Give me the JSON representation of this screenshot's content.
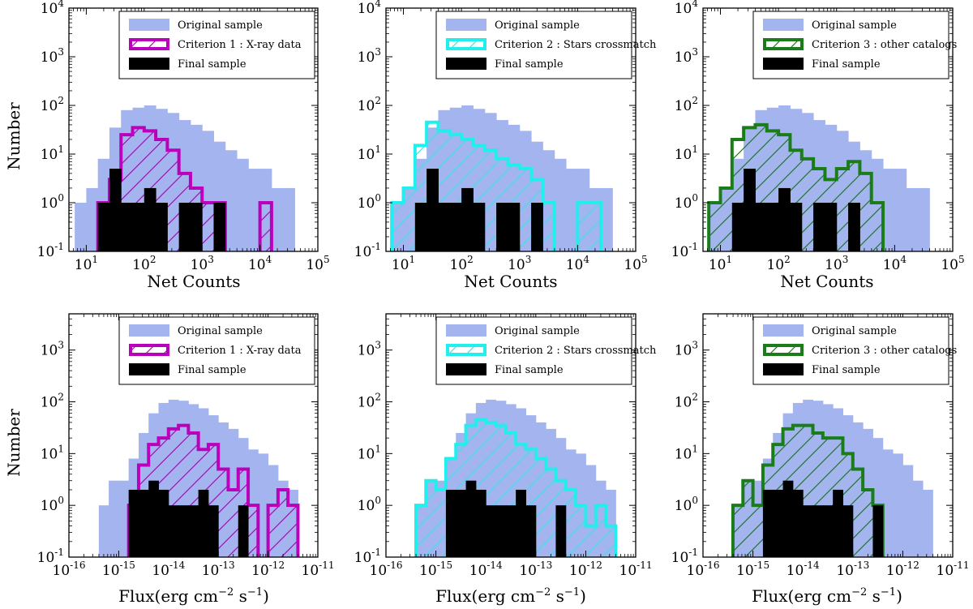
{
  "figure": {
    "ylabel_top": "Number",
    "ylabel_bottom": "Number",
    "xlabel_top": "Net Counts",
    "xlabel_bottom_base": "Flux(erg cm",
    "xlabel_bottom_exp1": "−2",
    "xlabel_bottom_mid": " s",
    "xlabel_bottom_exp2": "−1",
    "xlabel_bottom_end": ")"
  },
  "colors": {
    "original": "#a4b4ee",
    "crit1": "#bb00bb",
    "crit2": "#22eeee",
    "crit3": "#1a7d1a",
    "final": "#000000"
  },
  "chart_data": [
    {
      "type": "histogram",
      "panel": "top-left",
      "xlabel": "Net Counts",
      "ylabel": "Number",
      "xscale": "log",
      "yscale": "log",
      "xlim_log10": [
        0.7,
        5
      ],
      "ylim_log10": [
        -1,
        4
      ],
      "xticks": [
        {
          "b": "10",
          "e": "1",
          "v": 1
        },
        {
          "b": "10",
          "e": "2",
          "v": 2
        },
        {
          "b": "10",
          "e": "3",
          "v": 3
        },
        {
          "b": "10",
          "e": "4",
          "v": 4
        },
        {
          "b": "10",
          "e": "5",
          "v": 5
        }
      ],
      "yticks": [
        {
          "b": "10",
          "e": "-1",
          "v": -1
        },
        {
          "b": "10",
          "e": "0",
          "v": 0
        },
        {
          "b": "10",
          "e": "1",
          "v": 1
        },
        {
          "b": "10",
          "e": "2",
          "v": 2
        },
        {
          "b": "10",
          "e": "3",
          "v": 3
        },
        {
          "b": "10",
          "e": "4",
          "v": 4
        }
      ],
      "legend": [
        "Original sample",
        "Criterion 1 : X-ray data",
        "Final sample"
      ],
      "legend_position": "top-right",
      "original": {
        "start": 0.8,
        "width": 0.2,
        "counts": [
          1,
          2,
          8,
          35,
          80,
          90,
          100,
          85,
          70,
          50,
          40,
          30,
          18,
          12,
          8,
          5,
          5,
          2,
          2
        ]
      },
      "criterion": {
        "color_key": "crit1",
        "start": 1.0,
        "width": 0.2,
        "counts": [
          0,
          1,
          3,
          25,
          35,
          30,
          20,
          12,
          4,
          2,
          1,
          1,
          0,
          0,
          0,
          1,
          0,
          0,
          0,
          0
        ]
      },
      "final": {
        "start": 1.2,
        "width": 0.2,
        "counts": [
          1,
          5,
          1,
          1,
          2,
          1,
          0,
          1,
          1,
          0,
          1,
          0
        ]
      }
    },
    {
      "type": "histogram",
      "panel": "top-middle",
      "xlabel": "Net Counts",
      "ylabel": "",
      "xscale": "log",
      "yscale": "log",
      "xlim_log10": [
        0.7,
        5
      ],
      "ylim_log10": [
        -1,
        4
      ],
      "xticks": [
        {
          "b": "10",
          "e": "1",
          "v": 1
        },
        {
          "b": "10",
          "e": "2",
          "v": 2
        },
        {
          "b": "10",
          "e": "3",
          "v": 3
        },
        {
          "b": "10",
          "e": "4",
          "v": 4
        },
        {
          "b": "10",
          "e": "5",
          "v": 5
        }
      ],
      "yticks": [
        {
          "b": "10",
          "e": "-1",
          "v": -1
        },
        {
          "b": "10",
          "e": "0",
          "v": 0
        },
        {
          "b": "10",
          "e": "1",
          "v": 1
        },
        {
          "b": "10",
          "e": "2",
          "v": 2
        },
        {
          "b": "10",
          "e": "3",
          "v": 3
        },
        {
          "b": "10",
          "e": "4",
          "v": 4
        }
      ],
      "legend": [
        "Original sample",
        "Criterion 2 : Stars crossmatch",
        "Final sample"
      ],
      "legend_position": "top-right",
      "original": {
        "start": 0.8,
        "width": 0.2,
        "counts": [
          1,
          2,
          8,
          35,
          80,
          90,
          100,
          85,
          70,
          50,
          40,
          30,
          18,
          12,
          8,
          5,
          5,
          2,
          2
        ]
      },
      "criterion": {
        "color_key": "crit2",
        "start": 0.8,
        "width": 0.2,
        "counts": [
          1,
          2,
          15,
          45,
          30,
          25,
          20,
          15,
          12,
          8,
          6,
          5,
          3,
          1,
          0,
          0,
          1,
          1,
          0,
          0,
          0
        ]
      },
      "final": {
        "start": 1.2,
        "width": 0.2,
        "counts": [
          1,
          5,
          1,
          1,
          2,
          1,
          0,
          1,
          1,
          0,
          1,
          0
        ]
      }
    },
    {
      "type": "histogram",
      "panel": "top-right",
      "xlabel": "Net Counts",
      "ylabel": "",
      "xscale": "log",
      "yscale": "log",
      "xlim_log10": [
        0.7,
        5
      ],
      "ylim_log10": [
        -1,
        4
      ],
      "xticks": [
        {
          "b": "10",
          "e": "1",
          "v": 1
        },
        {
          "b": "10",
          "e": "2",
          "v": 2
        },
        {
          "b": "10",
          "e": "3",
          "v": 3
        },
        {
          "b": "10",
          "e": "4",
          "v": 4
        },
        {
          "b": "10",
          "e": "5",
          "v": 5
        }
      ],
      "yticks": [
        {
          "b": "10",
          "e": "-1",
          "v": -1
        },
        {
          "b": "10",
          "e": "0",
          "v": 0
        },
        {
          "b": "10",
          "e": "1",
          "v": 1
        },
        {
          "b": "10",
          "e": "2",
          "v": 2
        },
        {
          "b": "10",
          "e": "3",
          "v": 3
        },
        {
          "b": "10",
          "e": "4",
          "v": 4
        }
      ],
      "legend": [
        "Original sample",
        "Criterion 3 : other catalogs",
        "Final sample"
      ],
      "legend_position": "top-right",
      "original": {
        "start": 0.8,
        "width": 0.2,
        "counts": [
          1,
          2,
          8,
          35,
          80,
          90,
          100,
          85,
          70,
          50,
          40,
          30,
          18,
          12,
          8,
          5,
          5,
          2,
          2
        ]
      },
      "criterion": {
        "color_key": "crit3",
        "start": 0.8,
        "width": 0.2,
        "counts": [
          1,
          2,
          20,
          35,
          40,
          30,
          25,
          12,
          8,
          5,
          3,
          5,
          7,
          4,
          1,
          0,
          0,
          0,
          0,
          0
        ]
      },
      "final": {
        "start": 1.2,
        "width": 0.2,
        "counts": [
          1,
          5,
          1,
          1,
          2,
          1,
          0,
          1,
          1,
          0,
          1,
          0
        ]
      }
    },
    {
      "type": "histogram",
      "panel": "bottom-left",
      "xlabel": "Flux(erg cm−2 s−1)",
      "ylabel": "Number",
      "xscale": "log",
      "yscale": "log",
      "xlim_log10": [
        -16,
        -11
      ],
      "ylim_log10": [
        -1,
        3.7
      ],
      "xticks": [
        {
          "b": "10",
          "e": "-16",
          "v": -16
        },
        {
          "b": "10",
          "e": "-15",
          "v": -15
        },
        {
          "b": "10",
          "e": "-14",
          "v": -14
        },
        {
          "b": "10",
          "e": "-13",
          "v": -13
        },
        {
          "b": "10",
          "e": "-12",
          "v": -12
        },
        {
          "b": "10",
          "e": "-11",
          "v": -11
        }
      ],
      "yticks": [
        {
          "b": "10",
          "e": "-1",
          "v": -1
        },
        {
          "b": "10",
          "e": "0",
          "v": 0
        },
        {
          "b": "10",
          "e": "1",
          "v": 1
        },
        {
          "b": "10",
          "e": "2",
          "v": 2
        },
        {
          "b": "10",
          "e": "3",
          "v": 3
        }
      ],
      "legend": [
        "Original sample",
        "Criterion 1 : X-ray data",
        "Final sample"
      ],
      "legend_position": "top-right",
      "original": {
        "start": -15.4,
        "width": 0.2,
        "counts": [
          1,
          3,
          3,
          8,
          25,
          60,
          95,
          110,
          105,
          90,
          75,
          55,
          40,
          30,
          20,
          12,
          10,
          6,
          3,
          2
        ]
      },
      "criterion": {
        "color_key": "crit1",
        "start": -15.0,
        "width": 0.2,
        "counts": [
          0,
          1,
          6,
          15,
          20,
          30,
          35,
          25,
          12,
          15,
          5,
          2,
          5,
          1,
          0,
          1,
          2,
          1,
          0,
          0,
          0
        ]
      },
      "final": {
        "start": -14.8,
        "width": 0.2,
        "counts": [
          2,
          2,
          3,
          2,
          1,
          1,
          1,
          2,
          1,
          0,
          0,
          1,
          0
        ]
      }
    },
    {
      "type": "histogram",
      "panel": "bottom-middle",
      "xlabel": "Flux(erg cm−2 s−1)",
      "ylabel": "",
      "xscale": "log",
      "yscale": "log",
      "xlim_log10": [
        -16,
        -11
      ],
      "ylim_log10": [
        -1,
        3.7
      ],
      "xticks": [
        {
          "b": "10",
          "e": "-16",
          "v": -16
        },
        {
          "b": "10",
          "e": "-15",
          "v": -15
        },
        {
          "b": "10",
          "e": "-14",
          "v": -14
        },
        {
          "b": "10",
          "e": "-13",
          "v": -13
        },
        {
          "b": "10",
          "e": "-12",
          "v": -12
        },
        {
          "b": "10",
          "e": "-11",
          "v": -11
        }
      ],
      "yticks": [
        {
          "b": "10",
          "e": "-1",
          "v": -1
        },
        {
          "b": "10",
          "e": "0",
          "v": 0
        },
        {
          "b": "10",
          "e": "1",
          "v": 1
        },
        {
          "b": "10",
          "e": "2",
          "v": 2
        },
        {
          "b": "10",
          "e": "3",
          "v": 3
        }
      ],
      "legend": [
        "Original sample",
        "Criterion 2 : Stars crossmatch",
        "Final sample"
      ],
      "legend_position": "top-right",
      "original": {
        "start": -15.4,
        "width": 0.2,
        "counts": [
          1,
          3,
          3,
          8,
          25,
          60,
          95,
          110,
          105,
          90,
          75,
          55,
          40,
          30,
          20,
          12,
          10,
          6,
          3,
          2
        ]
      },
      "criterion": {
        "color_key": "crit2",
        "start": -15.4,
        "width": 0.2,
        "counts": [
          1,
          3,
          2,
          8,
          15,
          35,
          45,
          40,
          35,
          25,
          15,
          12,
          8,
          5,
          3,
          2,
          1,
          0.4,
          1,
          0.4,
          0,
          0
        ]
      },
      "final": {
        "start": -14.8,
        "width": 0.2,
        "counts": [
          2,
          2,
          3,
          2,
          1,
          1,
          1,
          2,
          1,
          0,
          0,
          1,
          0
        ]
      }
    },
    {
      "type": "histogram",
      "panel": "bottom-right",
      "xlabel": "Flux(erg cm−2 s−1)",
      "ylabel": "",
      "xscale": "log",
      "yscale": "log",
      "xlim_log10": [
        -16,
        -11
      ],
      "ylim_log10": [
        -1,
        3.7
      ],
      "xticks": [
        {
          "b": "10",
          "e": "-16",
          "v": -16
        },
        {
          "b": "10",
          "e": "-15",
          "v": -15
        },
        {
          "b": "10",
          "e": "-14",
          "v": -14
        },
        {
          "b": "10",
          "e": "-13",
          "v": -13
        },
        {
          "b": "10",
          "e": "-12",
          "v": -12
        },
        {
          "b": "10",
          "e": "-11",
          "v": -11
        }
      ],
      "yticks": [
        {
          "b": "10",
          "e": "-1",
          "v": -1
        },
        {
          "b": "10",
          "e": "0",
          "v": 0
        },
        {
          "b": "10",
          "e": "1",
          "v": 1
        },
        {
          "b": "10",
          "e": "2",
          "v": 2
        },
        {
          "b": "10",
          "e": "3",
          "v": 3
        }
      ],
      "legend": [
        "Original sample",
        "Criterion 3 : other catalogs",
        "Final sample"
      ],
      "legend_position": "top-right",
      "original": {
        "start": -15.4,
        "width": 0.2,
        "counts": [
          1,
          3,
          3,
          8,
          25,
          60,
          95,
          110,
          105,
          90,
          75,
          55,
          40,
          30,
          20,
          12,
          10,
          6,
          3,
          2
        ]
      },
      "criterion": {
        "color_key": "crit3",
        "start": -15.4,
        "width": 0.2,
        "counts": [
          1,
          3,
          1,
          6,
          15,
          30,
          35,
          35,
          25,
          20,
          20,
          10,
          5,
          2,
          1,
          0,
          0,
          0
        ]
      },
      "final": {
        "start": -14.8,
        "width": 0.2,
        "counts": [
          2,
          2,
          3,
          2,
          1,
          1,
          1,
          2,
          1,
          0,
          0,
          1,
          0
        ]
      }
    }
  ]
}
